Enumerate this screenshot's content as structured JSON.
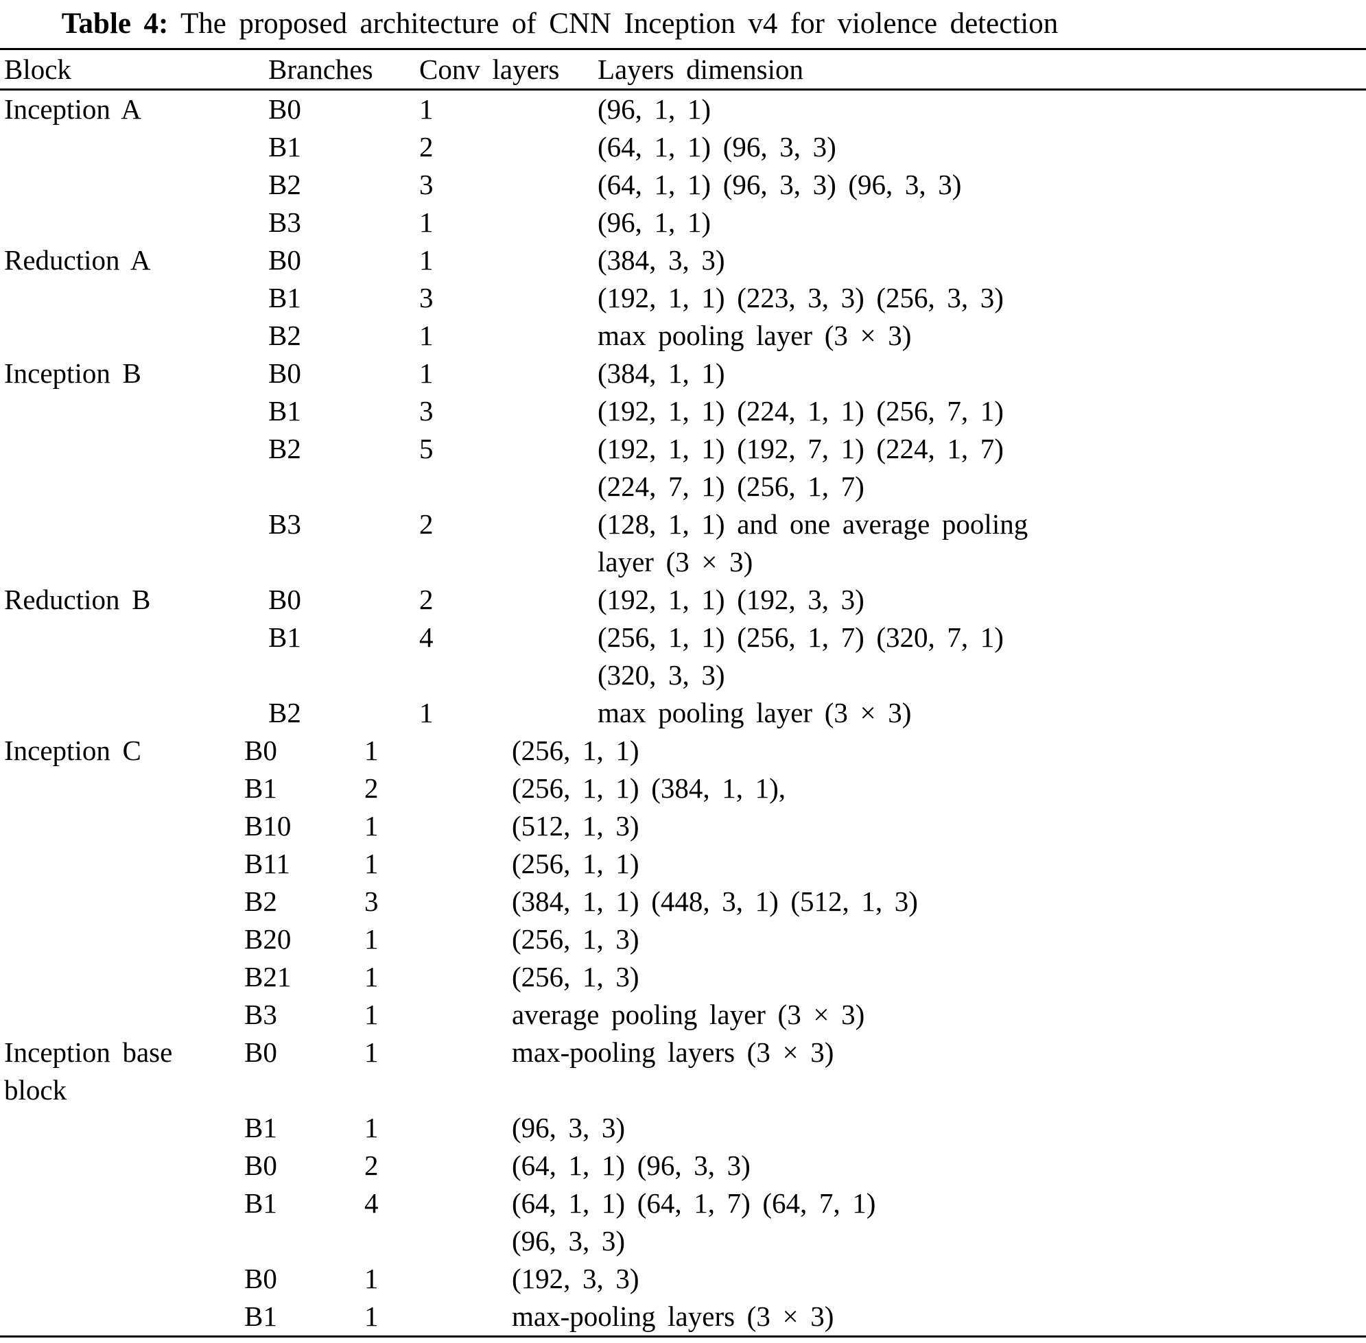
{
  "table": {
    "caption_label": "Table 4:",
    "caption_text": "The proposed architecture of CNN Inception v4 for violence detection",
    "headers": [
      "Block",
      "Branches",
      "Conv layers",
      "Layers dimension"
    ],
    "sections": [
      {
        "layout": "wide",
        "rows": [
          {
            "block": [
              "Inception A"
            ],
            "branch": "B0",
            "conv": "1",
            "dims": [
              "(96, 1, 1)"
            ]
          },
          {
            "block": [],
            "branch": "B1",
            "conv": "2",
            "dims": [
              "(64, 1, 1) (96, 3, 3)"
            ]
          },
          {
            "block": [],
            "branch": "B2",
            "conv": "3",
            "dims": [
              "(64, 1, 1) (96, 3, 3) (96, 3, 3)"
            ]
          },
          {
            "block": [],
            "branch": "B3",
            "conv": "1",
            "dims": [
              "(96, 1, 1)"
            ]
          },
          {
            "block": [
              "Reduction A"
            ],
            "branch": "B0",
            "conv": "1",
            "dims": [
              "(384, 3, 3)"
            ]
          },
          {
            "block": [],
            "branch": "B1",
            "conv": "3",
            "dims": [
              "(192, 1, 1) (223, 3, 3) (256, 3, 3)"
            ]
          },
          {
            "block": [],
            "branch": "B2",
            "conv": "1",
            "dims": [
              "max pooling layer (3 × 3)"
            ]
          },
          {
            "block": [
              "Inception B"
            ],
            "branch": "B0",
            "conv": "1",
            "dims": [
              "(384, 1, 1)"
            ]
          },
          {
            "block": [],
            "branch": "B1",
            "conv": "3",
            "dims": [
              "(192, 1, 1) (224, 1, 1) (256, 7, 1)"
            ]
          },
          {
            "block": [],
            "branch": "B2",
            "conv": "5",
            "dims": [
              "(192, 1, 1) (192, 7, 1) (224, 1, 7)",
              "(224, 7, 1) (256, 1, 7)"
            ]
          },
          {
            "block": [],
            "branch": "B3",
            "conv": "2",
            "dims": [
              "(128, 1, 1) and one average pooling",
              "layer (3 × 3)"
            ]
          },
          {
            "block": [
              "Reduction B"
            ],
            "branch": "B0",
            "conv": "2",
            "dims": [
              "(192, 1, 1) (192, 3, 3)"
            ]
          },
          {
            "block": [],
            "branch": "B1",
            "conv": "4",
            "dims": [
              "(256, 1, 1) (256, 1, 7) (320, 7, 1)",
              "(320, 3, 3)"
            ]
          },
          {
            "block": [],
            "branch": "B2",
            "conv": "1",
            "dims": [
              "max pooling layer (3 × 3)"
            ]
          }
        ]
      },
      {
        "layout": "narrow",
        "rows": [
          {
            "block": [
              "Inception C"
            ],
            "branch": "B0",
            "conv": "1",
            "dims": [
              "(256, 1, 1)"
            ]
          },
          {
            "block": [],
            "branch": "B1",
            "conv": "2",
            "dims": [
              "(256, 1, 1) (384, 1, 1),"
            ]
          },
          {
            "block": [],
            "branch": "B10",
            "conv": "1",
            "dims": [
              "(512, 1, 3)"
            ]
          },
          {
            "block": [],
            "branch": "B11",
            "conv": "1",
            "dims": [
              "(256, 1, 1)"
            ]
          },
          {
            "block": [],
            "branch": "B2",
            "conv": "3",
            "dims": [
              "(384, 1, 1) (448, 3, 1) (512, 1, 3)"
            ]
          },
          {
            "block": [],
            "branch": "B20",
            "conv": "1",
            "dims": [
              "(256, 1, 3)"
            ]
          },
          {
            "block": [],
            "branch": "B21",
            "conv": "1",
            "dims": [
              "(256, 1, 3)"
            ]
          },
          {
            "block": [],
            "branch": "B3",
            "conv": "1",
            "dims": [
              "average pooling layer (3 × 3)"
            ]
          },
          {
            "block": [
              "Inception base",
              "block"
            ],
            "branch": "B0",
            "conv": "1",
            "dims": [
              "max-pooling layers (3 × 3)"
            ]
          },
          {
            "block": [],
            "branch": "B1",
            "conv": "1",
            "dims": [
              "(96, 3, 3)"
            ]
          },
          {
            "block": [],
            "branch": "B0",
            "conv": "2",
            "dims": [
              "(64, 1, 1) (96, 3, 3)"
            ]
          },
          {
            "block": [],
            "branch": "B1",
            "conv": "4",
            "dims": [
              "(64, 1, 1) (64, 1, 7) (64, 7, 1)",
              "(96, 3, 3)"
            ]
          },
          {
            "block": [],
            "branch": "B0",
            "conv": "1",
            "dims": [
              "(192, 3, 3)"
            ]
          },
          {
            "block": [],
            "branch": "B1",
            "conv": "1",
            "dims": [
              "max-pooling layers (3 × 3)"
            ]
          }
        ]
      }
    ]
  }
}
